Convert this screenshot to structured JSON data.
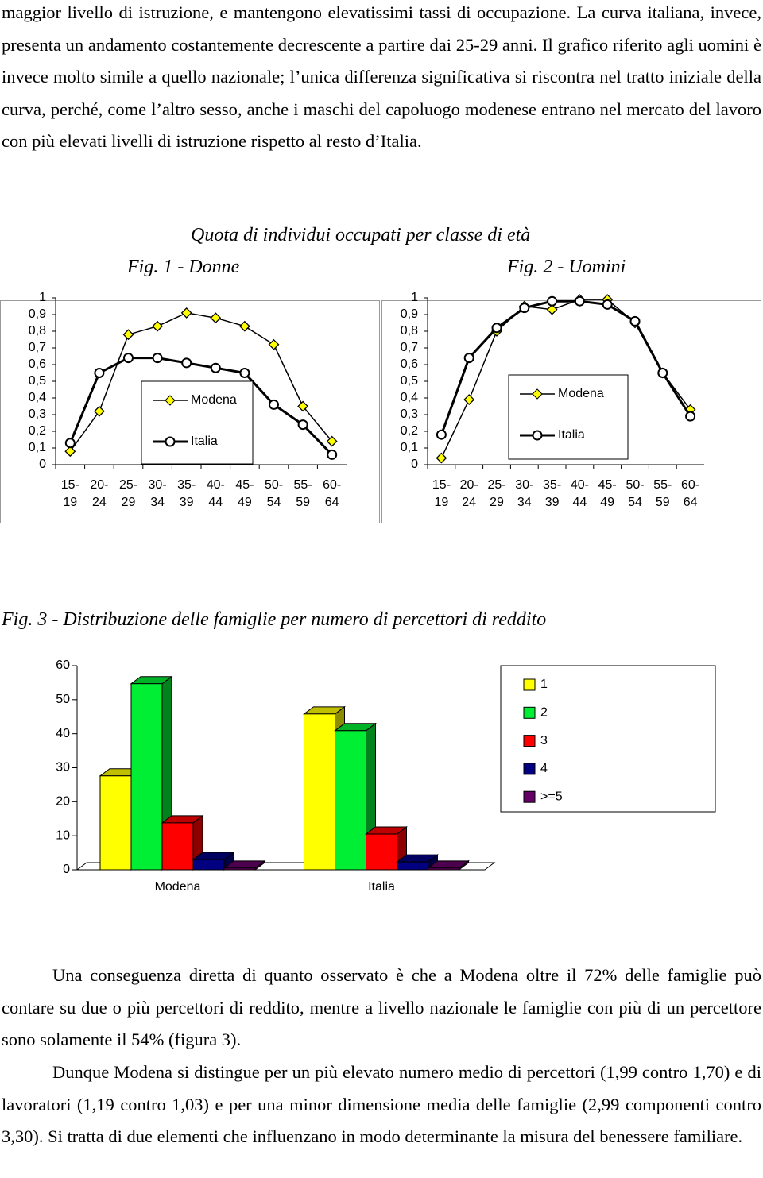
{
  "text_top": "maggior livello di istruzione, e mantengono elevatissimi tassi di occupazione. La curva italiana, invece, presenta un andamento costantemente decrescente a partire dai 25-29 anni. Il grafico riferito agli uomini è invece molto simile a quello nazionale; l’unica differenza significativa si riscontra nel tratto iniziale della curva, perché, come l’altro sesso, anche i maschi del capoluogo modenese entrano nel mercato del lavoro con più elevati livelli di istruzione rispetto al resto d’Italia.",
  "figures_heading": "Quota di individui occupati per classe di età",
  "chart_data": [
    {
      "type": "line",
      "title": "Fig. 1 - Donne",
      "categories": [
        "15- 19",
        "20- 24",
        "25- 29",
        "30- 34",
        "35- 39",
        "40- 44",
        "45- 49",
        "50- 54",
        "55- 59",
        "60- 64"
      ],
      "series": [
        {
          "name": "Modena",
          "color": "#ffff00",
          "marker": "diamond",
          "values": [
            0.08,
            0.32,
            0.78,
            0.83,
            0.91,
            0.88,
            0.83,
            0.72,
            0.35,
            0.14
          ]
        },
        {
          "name": "Italia",
          "color": "#000000",
          "marker": "circle",
          "values": [
            0.13,
            0.55,
            0.64,
            0.64,
            0.61,
            0.58,
            0.55,
            0.36,
            0.24,
            0.06
          ]
        }
      ],
      "ylim": [
        0,
        1
      ],
      "yticks": [
        0,
        {
          "value": 0.1,
          "label": "0,1"
        },
        {
          "value": 0.2,
          "label": "0,2"
        },
        {
          "value": 0.3,
          "label": "0,3"
        },
        {
          "value": 0.4,
          "label": "0,4"
        },
        {
          "value": 0.5,
          "label": "0,5"
        },
        {
          "value": 0.6,
          "label": "0,6"
        },
        {
          "value": 0.7,
          "label": "0,7"
        },
        {
          "value": 0.8,
          "label": "0,8"
        },
        {
          "value": 0.9,
          "label": "0,9"
        },
        1
      ]
    },
    {
      "type": "line",
      "title": "Fig. 2 - Uomini",
      "categories": [
        "15- 19",
        "20- 24",
        "25- 29",
        "30- 34",
        "35- 39",
        "40- 44",
        "45- 49",
        "50- 54",
        "55- 59",
        "60- 64"
      ],
      "series": [
        {
          "name": "Modena",
          "color": "#ffff00",
          "marker": "diamond",
          "values": [
            0.04,
            0.39,
            0.8,
            0.95,
            0.93,
            0.99,
            0.99,
            0.85,
            0.55,
            0.33
          ]
        },
        {
          "name": "Italia",
          "color": "#000000",
          "marker": "circle",
          "values": [
            0.18,
            0.64,
            0.82,
            0.94,
            0.98,
            0.98,
            0.96,
            0.86,
            0.55,
            0.29
          ]
        }
      ],
      "ylim": [
        0,
        1
      ],
      "yticks": [
        0,
        {
          "value": 0.1,
          "label": "0,1"
        },
        {
          "value": 0.2,
          "label": "0,2"
        },
        {
          "value": 0.3,
          "label": "0,3"
        },
        {
          "value": 0.4,
          "label": "0,4"
        },
        {
          "value": 0.5,
          "label": "0,5"
        },
        {
          "value": 0.6,
          "label": "0,6"
        },
        {
          "value": 0.7,
          "label": "0,7"
        },
        {
          "value": 0.8,
          "label": "0,8"
        },
        {
          "value": 0.9,
          "label": "0,9"
        },
        1
      ]
    },
    {
      "type": "bar3d",
      "title": "Fig. 3 - Distribuzione delle famiglie per numero di percettori di reddito",
      "categories": [
        "Modena",
        "Italia"
      ],
      "series": [
        {
          "name": "1",
          "color": "#ffff00",
          "values": [
            27.6,
            45.8
          ]
        },
        {
          "name": "2",
          "color": "#00ee33",
          "values": [
            54.7,
            40.9
          ]
        },
        {
          "name": "3",
          "color": "#ff0000",
          "values": [
            13.8,
            10.5
          ]
        },
        {
          "name": "4",
          "color": "#000080",
          "values": [
            3.0,
            2.3
          ]
        },
        {
          "name": ">=5",
          "color": "#660066",
          "values": [
            0.5,
            0.5
          ]
        }
      ],
      "ylim": [
        0,
        60
      ],
      "yticks": [
        0,
        10,
        20,
        30,
        40,
        50,
        60
      ]
    }
  ],
  "text_bottom": [
    "Una conseguenza diretta di quanto osservato è che a Modena oltre il 72% delle famiglie può contare su due o più percettori di reddito, mentre a livello nazionale le famiglie con più di un percettore sono solamente il 54% (figura 3).",
    "Dunque Modena si distingue per un più elevato numero medio di percettori (1,99 contro 1,70) e di lavoratori (1,19 contro 1,03) e per una minor dimensione media delle famiglie (2,99 componenti contro 3,30). Si tratta di due elementi che influenzano in modo determinante la misura del benessere familiare."
  ]
}
